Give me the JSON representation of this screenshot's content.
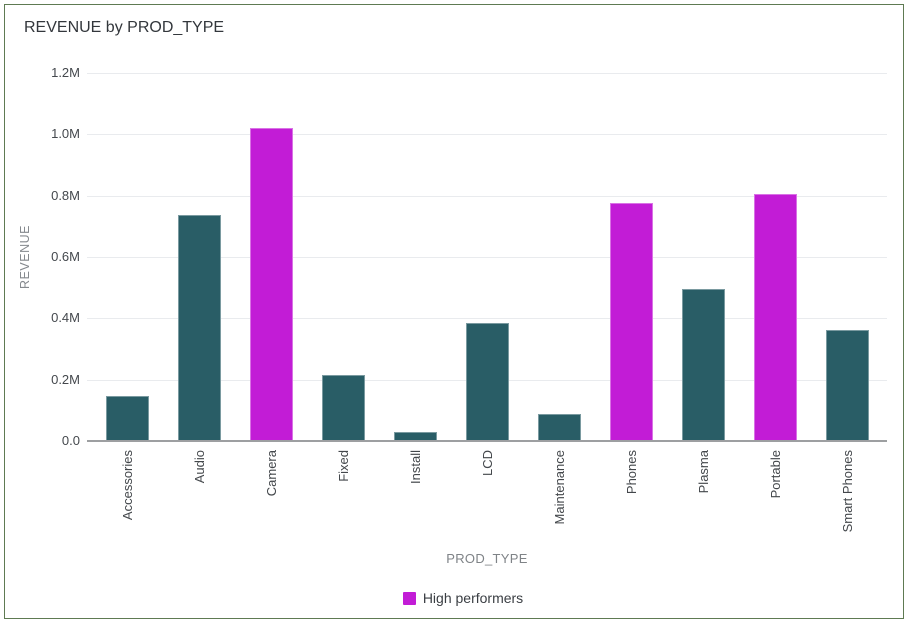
{
  "widget": {
    "border_color": "#5e7a52"
  },
  "chart_data": {
    "type": "bar",
    "title": "REVENUE by PROD_TYPE",
    "xlabel": "PROD_TYPE",
    "ylabel": "REVENUE",
    "categories": [
      "Accessories",
      "Audio",
      "Camera",
      "Fixed",
      "Install",
      "LCD",
      "Maintenance",
      "Phones",
      "Plasma",
      "Portable",
      "Smart Phones"
    ],
    "values": [
      147000,
      736000,
      1020000,
      215000,
      30000,
      386000,
      89000,
      776000,
      496000,
      805000,
      362000
    ],
    "highlight_categories": [
      "Camera",
      "Phones",
      "Portable"
    ],
    "ylim": [
      0,
      1200000
    ],
    "yticks": [
      {
        "v": 0,
        "label": "0.0"
      },
      {
        "v": 200000,
        "label": "0.2M"
      },
      {
        "v": 400000,
        "label": "0.4M"
      },
      {
        "v": 600000,
        "label": "0.6M"
      },
      {
        "v": 800000,
        "label": "0.8M"
      },
      {
        "v": 1000000,
        "label": "1.0M"
      },
      {
        "v": 1200000,
        "label": "1.2M"
      }
    ],
    "grid": true,
    "legend": [
      {
        "label": "High performers",
        "color": "#c21cd6"
      }
    ],
    "colors": {
      "default": "#295d66",
      "highlight": "#c21cd6",
      "gridline": "#e9ebee",
      "axis_line": "#9d9fa1"
    },
    "legend_position": "bottom-center"
  }
}
